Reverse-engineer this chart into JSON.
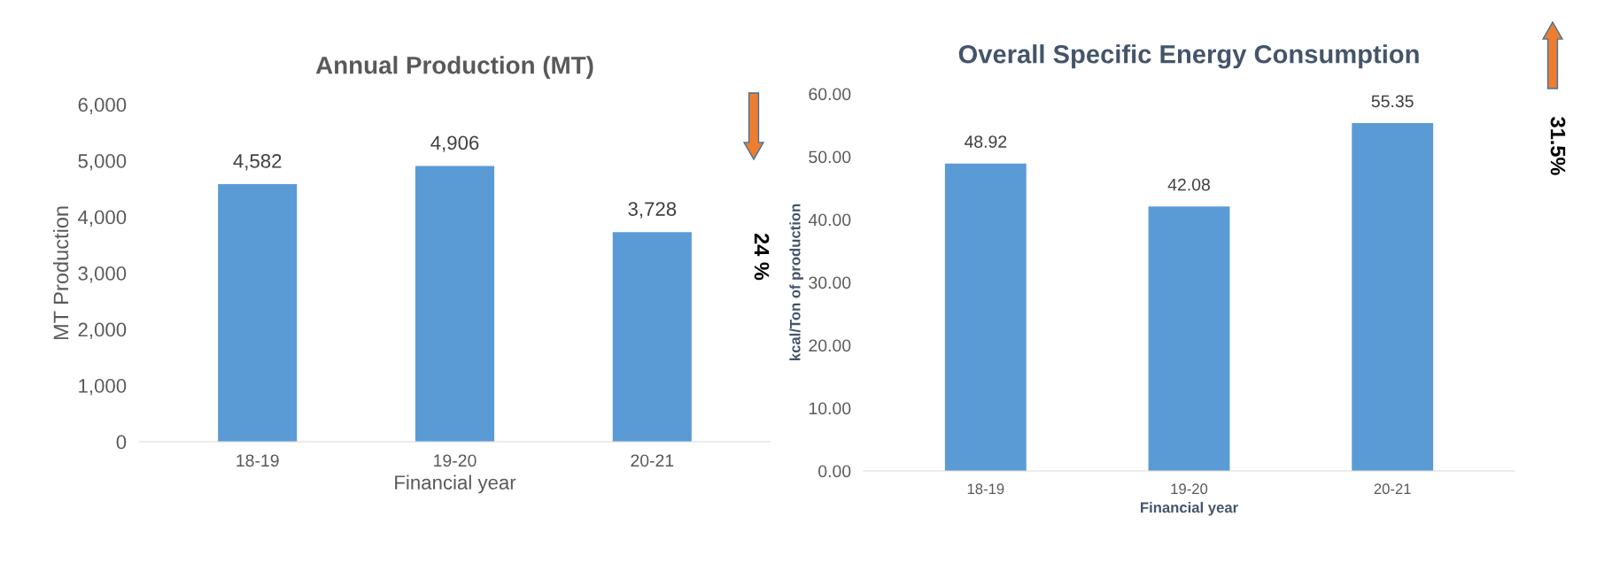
{
  "chart_data": [
    {
      "type": "bar",
      "title": "Annual Production (MT)",
      "xlabel": "Financial year",
      "ylabel": "MT Production",
      "categories": [
        "18-19",
        "19-20",
        "20-21"
      ],
      "values": [
        4582,
        4906,
        3728
      ],
      "value_labels": [
        "4,582",
        "4,906",
        "3,728"
      ],
      "color": "#5b9bd5",
      "ylim": [
        0,
        6000
      ],
      "yticks": [
        0,
        {
          "value": 1000,
          "label": "1,000"
        },
        {
          "value": 2000,
          "label": "2,000"
        },
        {
          "value": 3000,
          "label": "3,000"
        },
        {
          "value": 4000,
          "label": "4,000"
        },
        {
          "value": 5000,
          "label": "5,000"
        },
        {
          "value": 6000,
          "label": "6,000"
        }
      ],
      "grid": false,
      "annotations": [
        "24 %"
      ]
    },
    {
      "type": "bar",
      "title": "Overall Specific Energy Consumption",
      "xlabel": "Financial year",
      "ylabel": "kcal/Ton of production",
      "categories": [
        "18-19",
        "19-20",
        "20-21"
      ],
      "values": [
        48.92,
        42.08,
        55.35
      ],
      "data_labels": true,
      "color": "#5b9bd5",
      "ylim": [
        0,
        60
      ],
      "yticks": [
        {
          "value": 0,
          "label": "0.00"
        },
        {
          "value": 10,
          "label": "10.00"
        },
        {
          "value": 20,
          "label": "20.00"
        },
        {
          "value": 30,
          "label": "30.00"
        },
        {
          "value": 40,
          "label": "40.00"
        },
        {
          "value": 50,
          "label": "50.00"
        },
        {
          "value": 60,
          "label": "60.00"
        }
      ],
      "grid": false,
      "annotations": [
        "31.5%"
      ]
    }
  ]
}
